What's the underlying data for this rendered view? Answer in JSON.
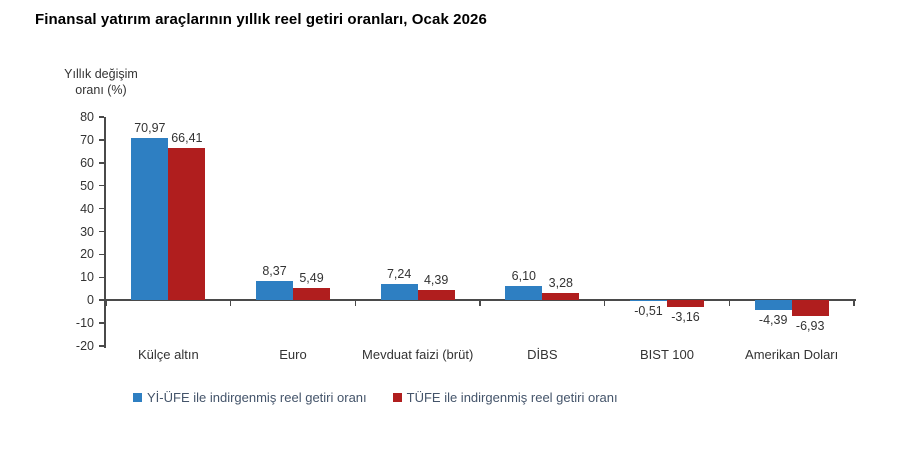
{
  "title": "Finansal yatırım araçlarının yıllık reel getiri oranları, Ocak 2026",
  "chart_data": {
    "type": "bar",
    "title": "Finansal yatırım araçlarının yıllık reel getiri oranları, Ocak 2026",
    "ylabel": "Yıllık değişim oranı (%)",
    "ylabel_lines": [
      "Yıllık değişim",
      "oranı (%)"
    ],
    "xlabel": "",
    "categories": [
      "Külçe altın",
      "Euro",
      "Mevduat faizi (brüt)",
      "DİBS",
      "BIST 100",
      "Amerikan Doları"
    ],
    "series": [
      {
        "name": "Yİ-ÜFE ile indirgenmiş reel getiri oranı",
        "color": "#2E7FC2",
        "values": [
          70.97,
          8.37,
          7.24,
          6.1,
          -0.51,
          -4.39
        ]
      },
      {
        "name": "TÜFE ile indirgenmiş reel getiri oranı",
        "color": "#B01E1E",
        "values": [
          66.41,
          5.49,
          4.39,
          3.28,
          -3.16,
          -6.93
        ]
      }
    ],
    "ylim": [
      -20,
      80
    ],
    "yticks": [
      80,
      70,
      60,
      50,
      40,
      30,
      20,
      10,
      0,
      -10,
      -20
    ],
    "decimal_separator": ",",
    "grid": false,
    "legend_position": "bottom"
  }
}
